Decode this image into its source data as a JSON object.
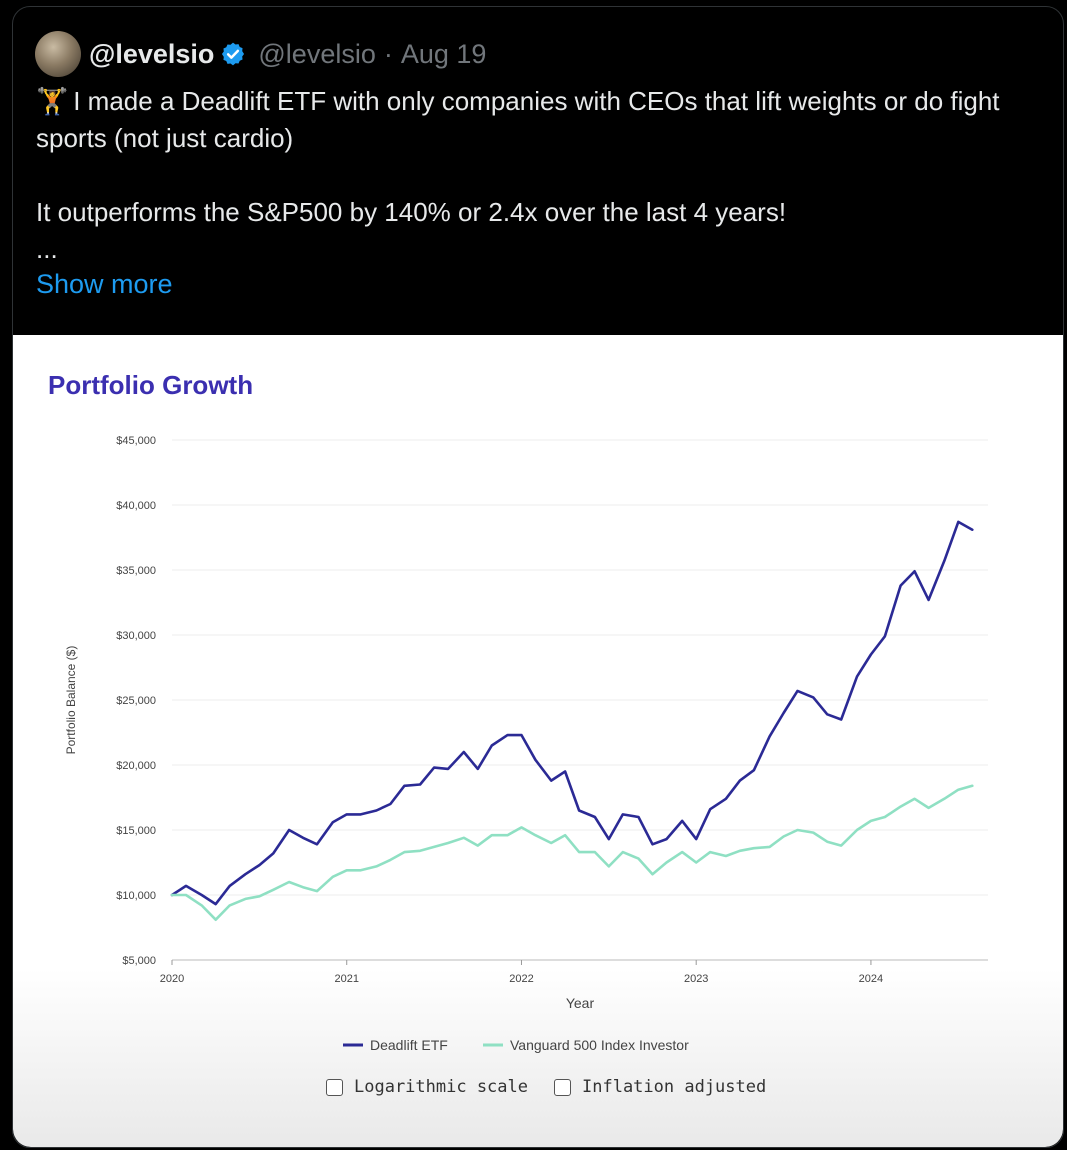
{
  "tweet": {
    "display_name": "@levelsio",
    "handle": "@levelsio",
    "separator": "·",
    "date": "Aug 19",
    "emoji": "🏋",
    "line1": "I made a Deadlift ETF with only companies with CEOs that lift weights or do fight sports (not just cardio)",
    "line2": "It outperforms the S&P500 by 140% or 2.4x over the last 4 years!",
    "ellipsis": "...",
    "show_more": "Show more"
  },
  "controls": {
    "log_scale": "Logarithmic scale",
    "inflation": "Inflation adjusted"
  },
  "colors": {
    "deadlift": "#2b2a95",
    "vanguard": "#8fe0c3",
    "title": "#3b2fb0",
    "link": "#1d9bf0"
  },
  "chart_data": {
    "type": "line",
    "title": "Portfolio Growth",
    "xlabel": "Year",
    "ylabel": "Portfolio Balance ($)",
    "xlim": [
      2020,
      2024.67
    ],
    "ylim": [
      5000,
      45000
    ],
    "x_ticks": [
      2020,
      2021,
      2022,
      2023,
      2024
    ],
    "x_tick_labels": [
      "2020",
      "2021",
      "2022",
      "2023",
      "2024"
    ],
    "y_ticks": [
      5000,
      10000,
      15000,
      20000,
      25000,
      30000,
      35000,
      40000,
      45000
    ],
    "y_tick_labels": [
      "$5,000",
      "$10,000",
      "$15,000",
      "$20,000",
      "$25,000",
      "$30,000",
      "$35,000",
      "$40,000",
      "$45,000"
    ],
    "grid": true,
    "legend": "bottom",
    "series": [
      {
        "name": "Deadlift ETF",
        "x": [
          2020,
          2020.08,
          2020.17,
          2020.25,
          2020.33,
          2020.42,
          2020.5,
          2020.58,
          2020.67,
          2020.75,
          2020.83,
          2020.92,
          2021,
          2021.08,
          2021.17,
          2021.25,
          2021.33,
          2021.42,
          2021.5,
          2021.58,
          2021.67,
          2021.75,
          2021.83,
          2021.92,
          2022,
          2022.08,
          2022.17,
          2022.25,
          2022.33,
          2022.42,
          2022.5,
          2022.58,
          2022.67,
          2022.75,
          2022.83,
          2022.92,
          2023,
          2023.08,
          2023.17,
          2023.25,
          2023.33,
          2023.42,
          2023.5,
          2023.58,
          2023.67,
          2023.75,
          2023.83,
          2023.92,
          2024,
          2024.08,
          2024.17,
          2024.25,
          2024.33,
          2024.42,
          2024.5,
          2024.58
        ],
        "values": [
          10000,
          10700,
          10000,
          9300,
          10700,
          11600,
          12300,
          13200,
          15000,
          14400,
          13900,
          15600,
          16200,
          16200,
          16500,
          17000,
          18400,
          18500,
          19800,
          19700,
          21000,
          19700,
          21500,
          22300,
          22300,
          20400,
          18800,
          19500,
          16500,
          16000,
          14300,
          16200,
          16000,
          13900,
          14300,
          15700,
          14300,
          16600,
          17400,
          18800,
          19600,
          22200,
          24000,
          25700,
          25200,
          23900,
          23500,
          26800,
          28500,
          29900,
          33800,
          34900,
          32700,
          35700,
          38700,
          38100
        ]
      },
      {
        "name": "Vanguard 500 Index Investor",
        "x": [
          2020,
          2020.08,
          2020.17,
          2020.25,
          2020.33,
          2020.42,
          2020.5,
          2020.58,
          2020.67,
          2020.75,
          2020.83,
          2020.92,
          2021,
          2021.08,
          2021.17,
          2021.25,
          2021.33,
          2021.42,
          2021.5,
          2021.58,
          2021.67,
          2021.75,
          2021.83,
          2021.92,
          2022,
          2022.08,
          2022.17,
          2022.25,
          2022.33,
          2022.42,
          2022.5,
          2022.58,
          2022.67,
          2022.75,
          2022.83,
          2022.92,
          2023,
          2023.08,
          2023.17,
          2023.25,
          2023.33,
          2023.42,
          2023.5,
          2023.58,
          2023.67,
          2023.75,
          2023.83,
          2023.92,
          2024,
          2024.08,
          2024.17,
          2024.25,
          2024.33,
          2024.42,
          2024.5,
          2024.58
        ],
        "values": [
          10000,
          10000,
          9200,
          8100,
          9200,
          9700,
          9900,
          10400,
          11000,
          10600,
          10300,
          11400,
          11900,
          11900,
          12200,
          12700,
          13300,
          13400,
          13700,
          14000,
          14400,
          13800,
          14600,
          14600,
          15200,
          14600,
          14000,
          14600,
          13300,
          13300,
          12200,
          13300,
          12800,
          11600,
          12500,
          13300,
          12500,
          13300,
          13000,
          13400,
          13600,
          13700,
          14500,
          15000,
          14800,
          14100,
          13800,
          15000,
          15700,
          16000,
          16800,
          17400,
          16700,
          17400,
          18100,
          18400
        ]
      }
    ]
  }
}
